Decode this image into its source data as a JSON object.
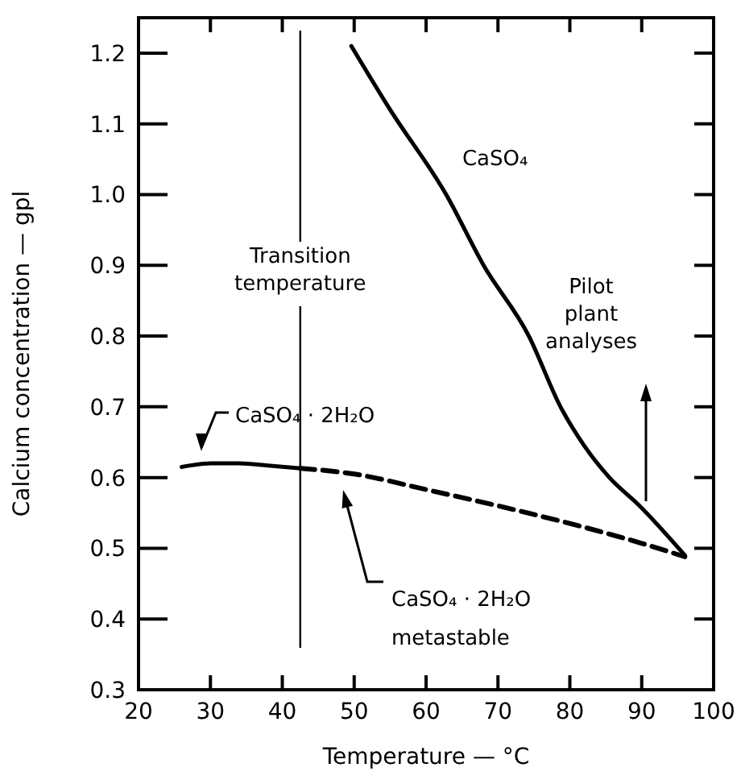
{
  "chart_data": {
    "type": "line",
    "xlabel": "Temperature — °C",
    "ylabel": "Calcium concentration — gpl",
    "xlim": [
      20,
      100
    ],
    "ylim": [
      0.3,
      1.25
    ],
    "xticks": [
      20,
      30,
      40,
      50,
      60,
      70,
      80,
      90,
      100
    ],
    "yticks": [
      0.3,
      0.4,
      0.5,
      0.6,
      0.7,
      0.8,
      0.9,
      {
        "value": 1,
        "label": "1.0"
      },
      1.1,
      1.2
    ],
    "grid": false,
    "legend": false,
    "marker": "none",
    "series": [
      {
        "name": "CaSO₄",
        "color": "#000000",
        "line_style": "solid",
        "x": [
          49.6,
          55,
          62.8,
          68,
          74.3,
          78.7,
          82,
          85.5,
          89.7,
          96
        ],
        "values": [
          1.21,
          1.12,
          1.0,
          0.9,
          0.8,
          0.7,
          0.645,
          0.6,
          0.56,
          0.49
        ]
      },
      {
        "color": "#000000",
        "line_style": "solid",
        "x": [
          26,
          30,
          34,
          38,
          42.5
        ],
        "values": [
          0.615,
          0.62,
          0.62,
          0.617,
          0.613
        ]
      },
      {
        "color": "#000000",
        "line_style": "dashed",
        "x": [
          42.5,
          50,
          60,
          70,
          80,
          90,
          96
        ],
        "values": [
          0.613,
          0.605,
          0.583,
          0.56,
          0.535,
          0.507,
          0.488
        ]
      }
    ],
    "ref_lines": [
      {
        "axis": "x",
        "value": 42.5,
        "label": "Transition\ntemperature"
      }
    ],
    "annotations": [
      "CaSO₄ · 2H₂O",
      "CaSO₄ · 2H₂O\nmetastable",
      "Pilot\nplant\nanalyses"
    ]
  }
}
